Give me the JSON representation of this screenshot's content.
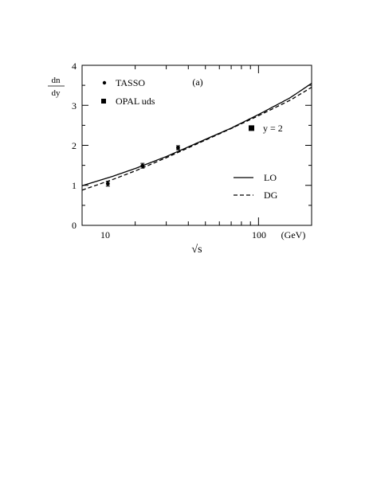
{
  "chart_data": {
    "type": "line",
    "title": "",
    "panel_label": "(a)",
    "annotation": "y = 2",
    "ylabel": {
      "numerator": "dn",
      "denominator": "dy"
    },
    "xlabel": "√s",
    "x_unit": "(GeV)",
    "xscale": "log",
    "xlim": [
      10,
      200
    ],
    "ylim": [
      0,
      4
    ],
    "x_ticks": [
      10,
      100
    ],
    "x_tick_labels": [
      "10",
      "100"
    ],
    "y_ticks": [
      0,
      1,
      2,
      3,
      4
    ],
    "y_tick_labels": [
      "0",
      "1",
      "2",
      "3",
      "4"
    ],
    "grid": false,
    "series": [
      {
        "name": "LO",
        "style": "solid",
        "x": [
          10,
          15,
          20,
          30,
          50,
          70,
          100,
          150,
          200
        ],
        "y": [
          0.99,
          1.23,
          1.42,
          1.72,
          2.15,
          2.43,
          2.77,
          3.18,
          3.55
        ]
      },
      {
        "name": "DG",
        "style": "dashed",
        "x": [
          10,
          15,
          20,
          30,
          50,
          70,
          100,
          150,
          200
        ],
        "y": [
          0.88,
          1.15,
          1.36,
          1.69,
          2.13,
          2.42,
          2.74,
          3.12,
          3.45
        ]
      }
    ],
    "points": [
      {
        "name": "TASSO",
        "marker": "circle",
        "x": [
          14,
          22,
          35
        ],
        "y": [
          1.04,
          1.49,
          1.94
        ],
        "err": [
          0.06,
          0.06,
          0.05
        ]
      },
      {
        "name": "OPAL uds",
        "marker": "square",
        "x": [
          91.2
        ],
        "y": [
          2.43
        ],
        "err": [
          0.04
        ]
      }
    ]
  }
}
